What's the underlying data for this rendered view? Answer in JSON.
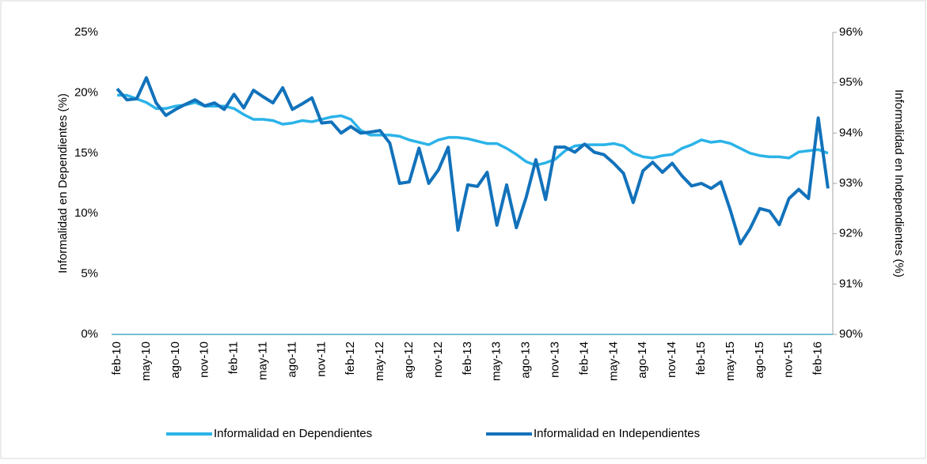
{
  "chart_data": {
    "type": "line",
    "y_label": "Informalidad en Dependientes (%)",
    "y2_label": "Informalidad en Independientes (%)",
    "categories": [
      "feb-10",
      null,
      null,
      "may-10",
      null,
      null,
      "ago-10",
      null,
      null,
      "nov-10",
      null,
      null,
      "feb-11",
      null,
      null,
      "may-11",
      null,
      null,
      "ago-11",
      null,
      null,
      "nov-11",
      null,
      null,
      "feb-12",
      null,
      null,
      "may-12",
      null,
      null,
      "ago-12",
      null,
      null,
      "nov-12",
      null,
      null,
      "feb-13",
      null,
      null,
      "may-13",
      null,
      null,
      "ago-13",
      null,
      null,
      "nov-13",
      null,
      null,
      "feb-14",
      null,
      null,
      "may-14",
      null,
      null,
      "ago-14",
      null,
      null,
      "nov-14",
      null,
      null,
      "feb-15",
      null,
      null,
      "may-15",
      null,
      null,
      "ago-15",
      null,
      null,
      "nov-15",
      null,
      null,
      "feb-16",
      null
    ],
    "ylim": [
      0,
      25
    ],
    "yticks": [
      {
        "value": 0,
        "label": "0%"
      },
      {
        "value": 5,
        "label": "5%"
      },
      {
        "value": 10,
        "label": "10%"
      },
      {
        "value": 15,
        "label": "15%"
      },
      {
        "value": 20,
        "label": "20%"
      },
      {
        "value": 25,
        "label": "25%"
      }
    ],
    "y2lim": [
      90,
      96
    ],
    "y2ticks": [
      {
        "value": 90,
        "label": "90%"
      },
      {
        "value": 91,
        "label": "91%"
      },
      {
        "value": 92,
        "label": "92%"
      },
      {
        "value": 93,
        "label": "93%"
      },
      {
        "value": 94,
        "label": "94%"
      },
      {
        "value": 95,
        "label": "95%"
      },
      {
        "value": 96,
        "label": "96%"
      }
    ],
    "legend": "bottom",
    "series": [
      {
        "name": "Informalidad en Dependientes",
        "color": "#2bb3e8",
        "values": [
          19.8,
          19.8,
          19.5,
          19.2,
          18.7,
          18.7,
          18.9,
          19.0,
          19.2,
          18.9,
          18.9,
          18.9,
          18.7,
          18.2,
          17.8,
          17.8,
          17.7,
          17.4,
          17.5,
          17.7,
          17.6,
          17.8,
          18.0,
          18.1,
          17.8,
          16.9,
          16.5,
          16.5,
          16.5,
          16.4,
          16.1,
          15.9,
          15.7,
          16.1,
          16.3,
          16.3,
          16.2,
          16.0,
          15.8,
          15.8,
          15.4,
          14.9,
          14.3,
          14.0,
          14.2,
          14.5,
          15.2,
          15.6,
          15.7,
          15.7,
          15.7,
          15.8,
          15.6,
          15.0,
          14.7,
          14.6,
          14.8,
          14.9,
          15.4,
          15.7,
          16.1,
          15.9,
          16.0,
          15.8,
          15.4,
          15.0,
          14.8,
          14.7,
          14.7,
          14.6,
          15.1,
          15.2,
          15.3,
          15.0
        ]
      },
      {
        "name": "Informalidad en Independientes",
        "color": "#1272bb",
        "axis": "y2",
        "values": [
          94.88,
          94.66,
          94.68,
          95.1,
          94.6,
          94.35,
          94.47,
          94.57,
          94.66,
          94.54,
          94.6,
          94.47,
          94.77,
          94.5,
          94.85,
          94.72,
          94.6,
          94.9,
          94.47,
          94.58,
          94.7,
          94.2,
          94.22,
          94.0,
          94.13,
          94.0,
          94.02,
          94.05,
          93.8,
          93.0,
          93.03,
          93.7,
          93.0,
          93.27,
          93.72,
          92.07,
          92.97,
          92.94,
          93.22,
          92.17,
          92.97,
          92.12,
          92.72,
          93.47,
          92.68,
          93.72,
          93.72,
          93.62,
          93.78,
          93.62,
          93.57,
          93.4,
          93.2,
          92.62,
          93.25,
          93.42,
          93.22,
          93.4,
          93.15,
          92.95,
          93.0,
          92.9,
          93.03,
          92.45,
          91.8,
          92.1,
          92.5,
          92.45,
          92.18,
          92.7,
          92.88,
          92.7,
          94.3,
          92.9
        ]
      }
    ]
  }
}
